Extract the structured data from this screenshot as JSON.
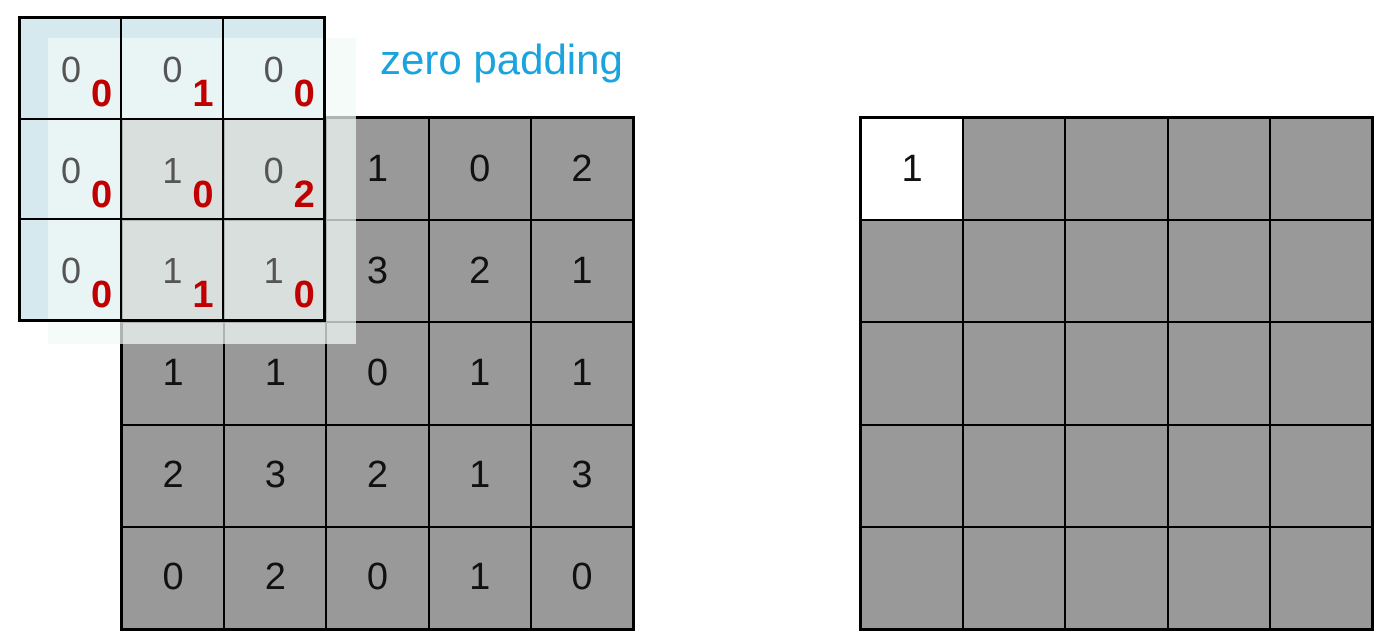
{
  "label": "zero padding",
  "input_matrix": [
    [
      "",
      "",
      "1",
      "0",
      "2"
    ],
    [
      "",
      "",
      "3",
      "2",
      "1"
    ],
    [
      "1",
      "1",
      "0",
      "1",
      "1"
    ],
    [
      "2",
      "3",
      "2",
      "1",
      "3"
    ],
    [
      "0",
      "2",
      "0",
      "1",
      "0"
    ]
  ],
  "kernel": [
    [
      {
        "v": "0",
        "w": "0"
      },
      {
        "v": "0",
        "w": "1"
      },
      {
        "v": "0",
        "w": "0"
      }
    ],
    [
      {
        "v": "0",
        "w": "0"
      },
      {
        "v": "1",
        "w": "0"
      },
      {
        "v": "0",
        "w": "2"
      }
    ],
    [
      {
        "v": "0",
        "w": "0"
      },
      {
        "v": "1",
        "w": "1"
      },
      {
        "v": "1",
        "w": "0"
      }
    ]
  ],
  "output_first": "1",
  "colors": {
    "cell": "#999999",
    "padding": "#d6e9ef",
    "weight": "#c00000",
    "label": "#1aa3dc"
  }
}
